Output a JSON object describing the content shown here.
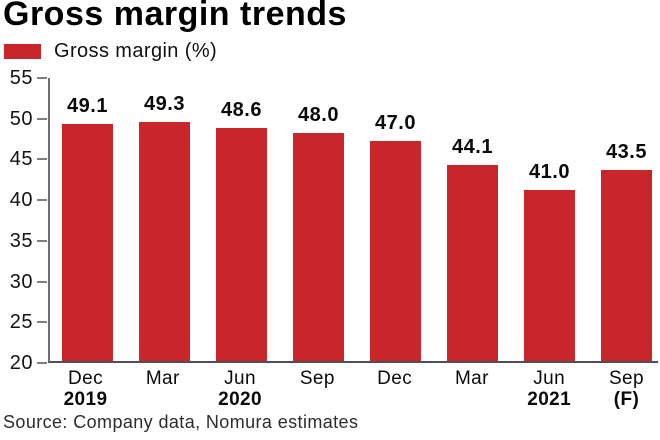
{
  "chart_data": {
    "type": "bar",
    "title": "Gross margin trends",
    "legend": "Gross margin (%)",
    "legend_position": "top-left",
    "bar_color": "#c9262c",
    "grid": false,
    "ylim": [
      20,
      55
    ],
    "yticks": [
      55,
      50,
      45,
      40,
      35,
      30,
      25,
      20
    ],
    "categories": [
      {
        "line1": "Dec",
        "line2": "2019"
      },
      {
        "line1": "Mar",
        "line2": ""
      },
      {
        "line1": "Jun",
        "line2": "2020"
      },
      {
        "line1": "Sep",
        "line2": ""
      },
      {
        "line1": "Dec",
        "line2": ""
      },
      {
        "line1": "Mar",
        "line2": ""
      },
      {
        "line1": "Jun",
        "line2": "2021"
      },
      {
        "line1": "Sep",
        "line2": "(F)"
      }
    ],
    "values": [
      49.1,
      49.3,
      48.6,
      48.0,
      47.0,
      44.1,
      41.0,
      43.5
    ]
  },
  "source": "Source: Company data, Nomura estimates"
}
